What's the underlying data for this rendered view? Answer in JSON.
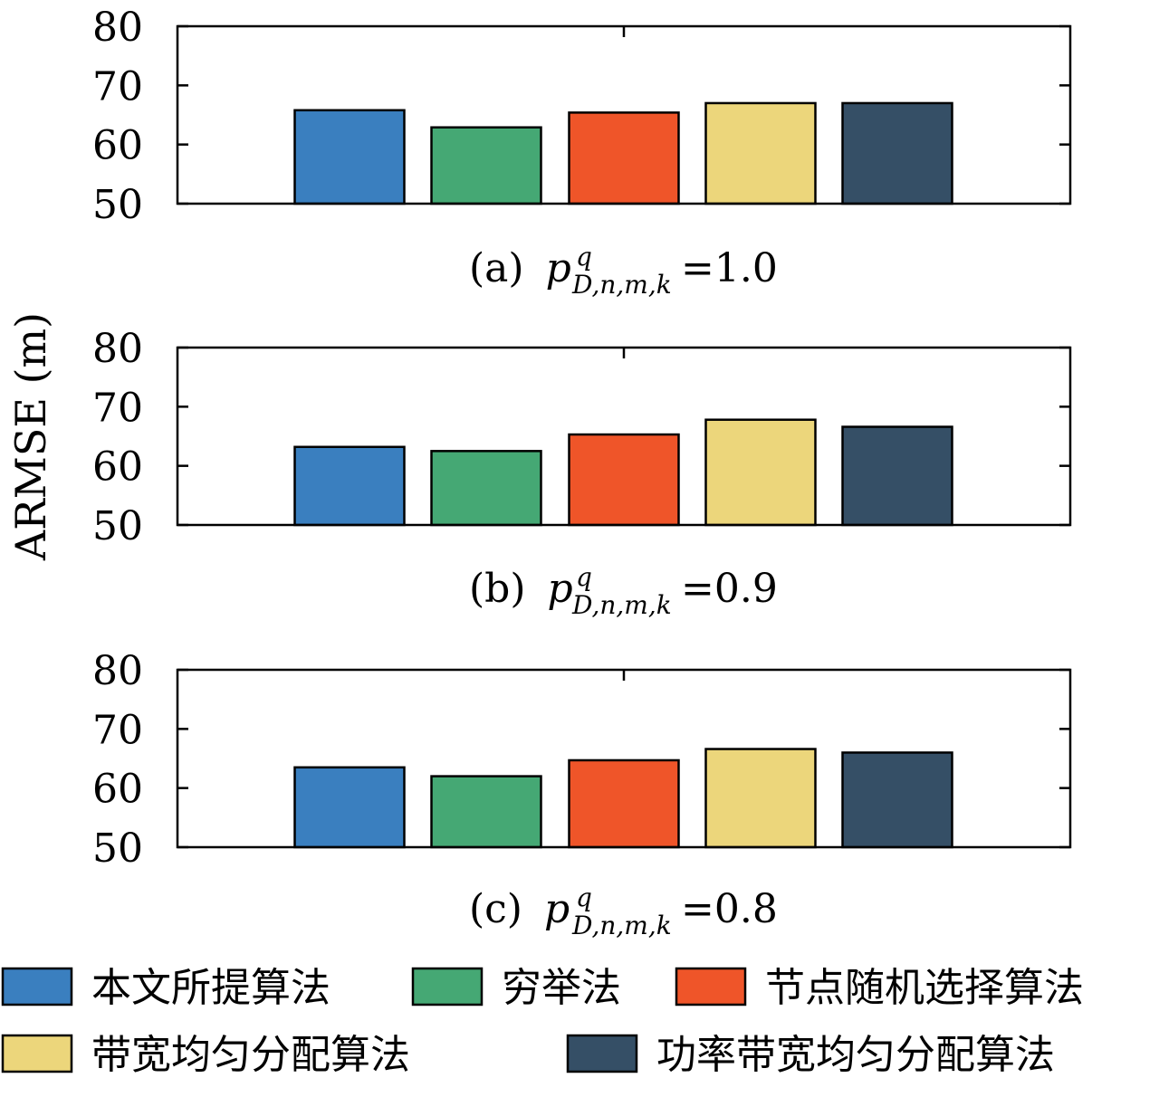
{
  "chart_data": {
    "type": "bar",
    "ylabel": "ARMSE (m)",
    "ylim": [
      50,
      80
    ],
    "yticks": [
      50,
      60,
      70,
      80
    ],
    "grid": false,
    "legend_placement": "bottom",
    "series": [
      {
        "name": "本文所提算法",
        "color": "#3a7fbf"
      },
      {
        "name": "穷举法",
        "color": "#45a874"
      },
      {
        "name": "节点随机选择算法",
        "color": "#ef5529"
      },
      {
        "name": "带宽均匀分配算法",
        "color": "#ecd67b"
      },
      {
        "name": "功率带宽均匀分配算法",
        "color": "#354f66"
      }
    ],
    "panels": [
      {
        "label": "(a)",
        "p_symbol": "p",
        "sup": "q",
        "sub": "D,n,m,k",
        "p_value": "1.0",
        "values": [
          65.8,
          62.9,
          65.4,
          67.0,
          67.0
        ]
      },
      {
        "label": "(b)",
        "p_symbol": "p",
        "sup": "q",
        "sub": "D,n,m,k",
        "p_value": "0.9",
        "values": [
          63.2,
          62.5,
          65.3,
          67.8,
          66.6
        ]
      },
      {
        "label": "(c)",
        "p_symbol": "p",
        "sup": "q",
        "sub": "D,n,m,k",
        "p_value": "0.8",
        "values": [
          63.5,
          62.0,
          64.7,
          66.6,
          66.0
        ]
      }
    ]
  }
}
